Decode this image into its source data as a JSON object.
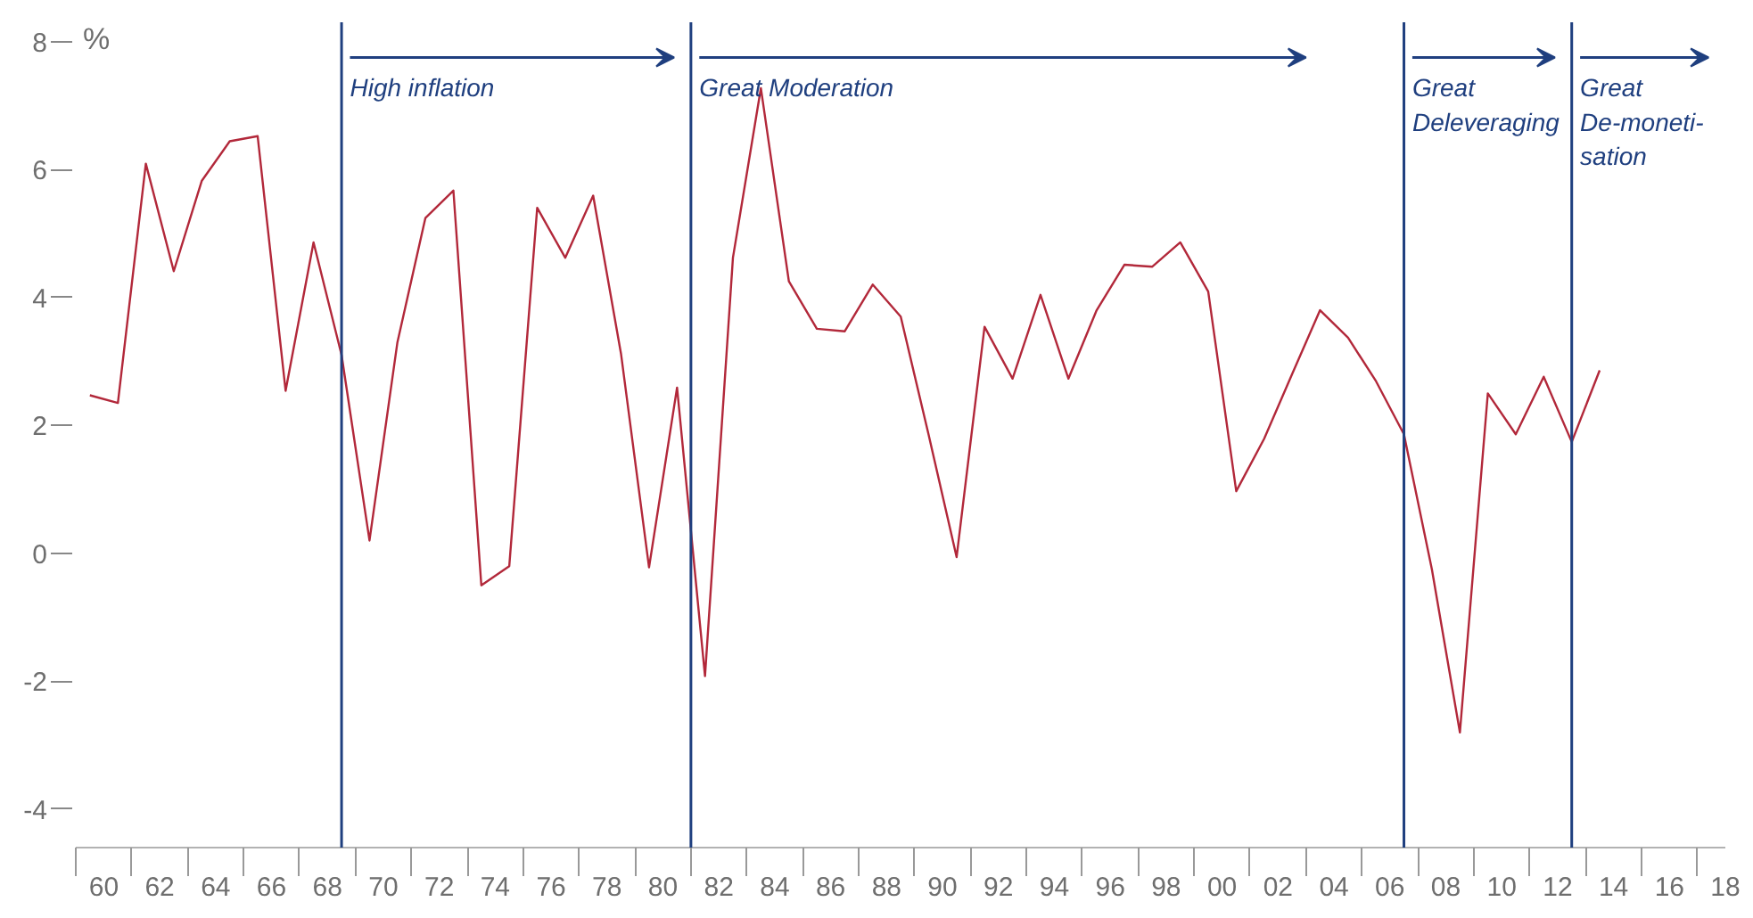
{
  "chart_data": {
    "type": "line",
    "ylabel": "%",
    "x": [
      "1960",
      "1961",
      "1962",
      "1963",
      "1964",
      "1965",
      "1966",
      "1967",
      "1968",
      "1969",
      "1970",
      "1971",
      "1972",
      "1973",
      "1974",
      "1975",
      "1976",
      "1977",
      "1978",
      "1979",
      "1980",
      "1981",
      "1982",
      "1983",
      "1984",
      "1985",
      "1986",
      "1987",
      "1988",
      "1989",
      "1990",
      "1991",
      "1992",
      "1993",
      "1994",
      "1995",
      "1996",
      "1997",
      "1998",
      "1999",
      "2000",
      "2001",
      "2002",
      "2003",
      "2004",
      "2005",
      "2006",
      "2007",
      "2008",
      "2009",
      "2010",
      "2011",
      "2012",
      "2013",
      "2014"
    ],
    "series": [
      {
        "color": "#b2283a",
        "values": [
          2.47,
          2.35,
          6.09,
          4.41,
          5.82,
          6.44,
          6.52,
          2.54,
          4.86,
          3.1,
          0.2,
          3.3,
          5.24,
          5.67,
          -0.5,
          -0.2,
          5.4,
          4.62,
          5.59,
          3.11,
          -0.22,
          2.59,
          -1.92,
          4.62,
          7.27,
          4.25,
          3.51,
          3.47,
          4.2,
          3.7,
          1.85,
          -0.06,
          3.54,
          2.73,
          4.04,
          2.73,
          3.79,
          4.51,
          4.48,
          4.86,
          4.09,
          0.97,
          1.79,
          2.8,
          3.8,
          3.37,
          2.69,
          1.86,
          -0.25,
          -2.8,
          2.5,
          1.86,
          2.76,
          1.74,
          2.86
        ]
      }
    ],
    "xticks": [
      {
        "value": "1959-07",
        "label": null
      },
      {
        "value": "1960-07",
        "label": "60"
      },
      {
        "value": "1961-07",
        "label": null
      },
      {
        "value": "1962-07",
        "label": "62"
      },
      {
        "value": "1963-07",
        "label": null
      },
      {
        "value": "1964-07",
        "label": "64"
      },
      {
        "value": "1965-07",
        "label": null
      },
      {
        "value": "1966-07",
        "label": "66"
      },
      {
        "value": "1967-07",
        "label": null
      },
      {
        "value": "1968-07",
        "label": "68"
      },
      {
        "value": "1969-07",
        "label": null
      },
      {
        "value": "1970-07",
        "label": "70"
      },
      {
        "value": "1971-07",
        "label": null
      },
      {
        "value": "1972-07",
        "label": "72"
      },
      {
        "value": "1973-07",
        "label": null
      },
      {
        "value": "1974-07",
        "label": "74"
      },
      {
        "value": "1975-07",
        "label": null
      },
      {
        "value": "1976-07",
        "label": "76"
      },
      {
        "value": "1977-07",
        "label": null
      },
      {
        "value": "1978-07",
        "label": "78"
      },
      {
        "value": "1979-07",
        "label": null
      },
      {
        "value": "1980-07",
        "label": "80"
      },
      {
        "value": "1981-07",
        "label": null
      },
      {
        "value": "1982-07",
        "label": "82"
      },
      {
        "value": "1983-07",
        "label": null
      },
      {
        "value": "1984-07",
        "label": "84"
      },
      {
        "value": "1985-07",
        "label": null
      },
      {
        "value": "1986-07",
        "label": "86"
      },
      {
        "value": "1987-07",
        "label": null
      },
      {
        "value": "1988-07",
        "label": "88"
      },
      {
        "value": "1989-07",
        "label": null
      },
      {
        "value": "1990-07",
        "label": "90"
      },
      {
        "value": "1991-07",
        "label": null
      },
      {
        "value": "1992-07",
        "label": "92"
      },
      {
        "value": "1993-07",
        "label": null
      },
      {
        "value": "1994-07",
        "label": "94"
      },
      {
        "value": "1995-07",
        "label": null
      },
      {
        "value": "1996-07",
        "label": "96"
      },
      {
        "value": "1997-07",
        "label": null
      },
      {
        "value": "1998-07",
        "label": "98"
      },
      {
        "value": "1999-07",
        "label": null
      },
      {
        "value": "2000-07",
        "label": "00"
      },
      {
        "value": "2001-07",
        "label": null
      },
      {
        "value": "2002-07",
        "label": "02"
      },
      {
        "value": "2003-07",
        "label": null
      },
      {
        "value": "2004-07",
        "label": "04"
      },
      {
        "value": "2005-07",
        "label": null
      },
      {
        "value": "2006-07",
        "label": "06"
      },
      {
        "value": "2007-07",
        "label": null
      },
      {
        "value": "2008-07",
        "label": "08"
      },
      {
        "value": "2009-07",
        "label": null
      },
      {
        "value": "2010-07",
        "label": "10"
      },
      {
        "value": "2011-07",
        "label": null
      },
      {
        "value": "2012-07",
        "label": "12"
      },
      {
        "value": "2013-07",
        "label": null
      },
      {
        "value": "2014-07",
        "label": "14"
      },
      {
        "value": "2015-07",
        "label": null
      },
      {
        "value": "2016-07",
        "label": "16"
      },
      {
        "value": "2017-07",
        "label": null
      },
      {
        "value": "2018-07",
        "label": "18"
      }
    ],
    "xlim": [
      "1959-07",
      "2018-07"
    ],
    "ylim": [
      -4.6,
      8.3
    ],
    "yticks": [
      -4,
      -2,
      0,
      2,
      4,
      6,
      8
    ],
    "ref_lines": [
      {
        "axis": "x",
        "value": "1969",
        "label": "High inflation",
        "color": "#1f3f7f"
      },
      {
        "axis": "x",
        "value": "1981-07",
        "label": "Great Moderation",
        "color": "#1f3f7f"
      },
      {
        "axis": "x",
        "value": "2007",
        "label": "Great\nDeleveraging",
        "color": "#1f3f7f"
      },
      {
        "axis": "x",
        "value": "2013",
        "label": "Great\nDe-moneti-\nsation",
        "color": "#1f3f7f"
      }
    ],
    "grid": false,
    "marker": "none",
    "line_style": "solid"
  }
}
